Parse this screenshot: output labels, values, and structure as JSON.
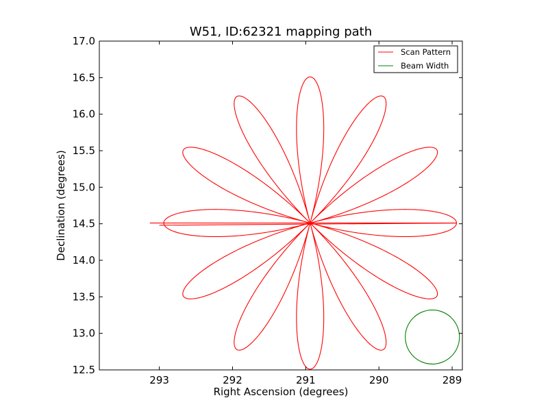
{
  "chart_data": {
    "type": "line",
    "title": "W51, ID:62321 mapping path",
    "xlabel": "Right Ascension (degrees)",
    "ylabel": "Declination (degrees)",
    "xlim": [
      293.82,
      288.86
    ],
    "ylim": [
      12.5,
      17.0
    ],
    "x_inverted": true,
    "xticks": [
      {
        "value": 293,
        "label": "293"
      },
      {
        "value": 292,
        "label": "292"
      },
      {
        "value": 291,
        "label": "291"
      },
      {
        "value": 290,
        "label": "290"
      },
      {
        "value": 289,
        "label": "289"
      }
    ],
    "yticks": [
      {
        "value": 12.5,
        "label": "12.5"
      },
      {
        "value": 13.0,
        "label": "13.0"
      },
      {
        "value": 13.5,
        "label": "13.5"
      },
      {
        "value": 14.0,
        "label": "14.0"
      },
      {
        "value": 14.5,
        "label": "14.5"
      },
      {
        "value": 15.0,
        "label": "15.0"
      },
      {
        "value": 15.5,
        "label": "15.5"
      },
      {
        "value": 16.0,
        "label": "16.0"
      },
      {
        "value": 16.5,
        "label": "16.5"
      },
      {
        "value": 17.0,
        "label": "17.0"
      }
    ],
    "grid": false,
    "legend_position": "top-right",
    "series": [
      {
        "name": "Scan Pattern",
        "kind": "rose-curve",
        "color": "#ff0000",
        "center": [
          290.94,
          14.51
        ],
        "amplitude_ra": 2.0,
        "amplitude_dec": 2.0,
        "petals": 12,
        "start_point": [
          293.13,
          14.51
        ],
        "tail_end_point": [
          293.0,
          14.48
        ]
      },
      {
        "name": "Beam Width",
        "kind": "circle",
        "color": "#008000",
        "center": [
          289.27,
          12.95
        ],
        "radius_ra": 0.37,
        "radius_dec": 0.37
      }
    ]
  }
}
